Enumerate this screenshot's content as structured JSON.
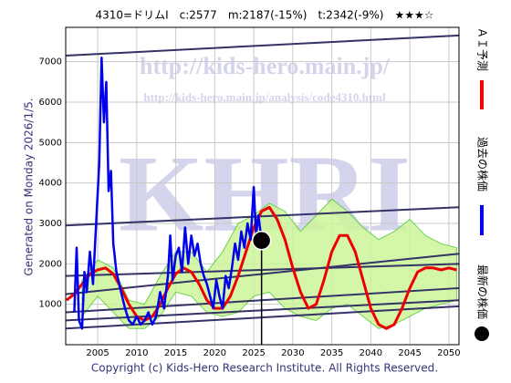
{
  "chart_data": {
    "type": "line",
    "title": "4310=ドリムI　c:2577　m:2187(-15%)　t:2342(-9%)　★★★☆",
    "side_note": "Generated on Monday 2026/1/5.",
    "copyright": "Copyright (c) Kids-Hero Research Institute. All Rights Reserved.",
    "watermarks": [
      "http://kids-hero.main.jp/",
      "http://kids-hero.main.jp/analysis/code4310.html",
      "KHRI"
    ],
    "xlim": [
      2000.9,
      2051.3
    ],
    "ylim": [
      0,
      7850
    ],
    "xticks": [
      2005,
      2010,
      2015,
      2020,
      2025,
      2030,
      2035,
      2040,
      2045,
      2050
    ],
    "yticks": [
      1000,
      2000,
      3000,
      4000,
      5000,
      6000,
      7000
    ],
    "grid": true,
    "bands": [
      {
        "color": "#55cc33",
        "fill": "#ccf59a",
        "x": [
          2003,
          2005,
          2007,
          2009,
          2011,
          2013,
          2015,
          2017,
          2019,
          2021,
          2023,
          2025,
          2027,
          2029,
          2031,
          2033,
          2035,
          2037,
          2039,
          2041,
          2043,
          2045,
          2047,
          2049,
          2051
        ],
        "upper": [
          1600,
          2100,
          1900,
          1100,
          1000,
          1700,
          2300,
          2300,
          1800,
          2300,
          3000,
          3200,
          3500,
          3300,
          2800,
          3200,
          3600,
          3300,
          2900,
          2600,
          2800,
          3100,
          2700,
          2500,
          2400
        ],
        "lower": [
          700,
          1200,
          800,
          400,
          400,
          700,
          1300,
          1200,
          800,
          700,
          800,
          1200,
          1300,
          900,
          700,
          600,
          900,
          1000,
          700,
          400,
          500,
          700,
          900,
          1000,
          1100
        ]
      }
    ],
    "series": [
      {
        "color": "#333366",
        "x": [
          2000.9,
          2051.3
        ],
        "values": [
          7150,
          7650
        ]
      },
      {
        "color": "#333366",
        "x": [
          2000.9,
          2051.3
        ],
        "values": [
          2950,
          3400
        ]
      },
      {
        "color": "#333366",
        "x": [
          2000.9,
          2051.3
        ],
        "values": [
          1250,
          2250
        ]
      },
      {
        "color": "#333366",
        "x": [
          2000.9,
          2051.3
        ],
        "values": [
          1700,
          2000
        ]
      },
      {
        "color": "#333366",
        "x": [
          2000.9,
          2051.3
        ],
        "values": [
          800,
          1400
        ]
      },
      {
        "color": "#333366",
        "x": [
          2000.9,
          2051.3
        ],
        "values": [
          600,
          1100
        ]
      },
      {
        "color": "#333366",
        "x": [
          2000.9,
          2051.3
        ],
        "values": [
          400,
          950
        ]
      },
      {
        "name": "ＡＩ予測",
        "color": "#ee0000",
        "width": 3,
        "x": [
          2001,
          2002,
          2003,
          2004,
          2005,
          2006,
          2007,
          2008,
          2009,
          2010,
          2011,
          2012,
          2013,
          2014,
          2015,
          2016,
          2017,
          2018,
          2019,
          2020,
          2021,
          2022,
          2023,
          2024,
          2025,
          2026,
          2027,
          2028,
          2029,
          2030,
          2031,
          2032,
          2033,
          2034,
          2035,
          2036,
          2037,
          2038,
          2039,
          2040,
          2041,
          2042,
          2043,
          2044,
          2045,
          2046,
          2047,
          2048,
          2049,
          2050,
          2051
        ],
        "values": [
          1100,
          1250,
          1500,
          1750,
          1850,
          1900,
          1750,
          1400,
          1000,
          700,
          600,
          700,
          1000,
          1400,
          1750,
          1900,
          1800,
          1500,
          1100,
          900,
          900,
          1200,
          1700,
          2300,
          2900,
          3300,
          3400,
          3100,
          2600,
          1900,
          1300,
          900,
          1000,
          1600,
          2300,
          2700,
          2700,
          2300,
          1600,
          900,
          500,
          400,
          500,
          900,
          1400,
          1800,
          1900,
          1900,
          1850,
          1900,
          1850
        ]
      },
      {
        "name": "過去の株価",
        "color": "#0000ee",
        "width": 2.5,
        "x": [
          2002.0,
          2002.3,
          2002.6,
          2003.0,
          2003.3,
          2003.6,
          2004.0,
          2004.4,
          2004.8,
          2005.2,
          2005.5,
          2005.8,
          2006.1,
          2006.4,
          2006.7,
          2007.0,
          2007.4,
          2008.0,
          2008.5,
          2009.0,
          2009.5,
          2010.0,
          2010.5,
          2011.0,
          2011.5,
          2012.0,
          2012.5,
          2013.0,
          2013.5,
          2014.0,
          2014.3,
          2014.6,
          2015.0,
          2015.4,
          2015.8,
          2016.2,
          2016.6,
          2017.0,
          2017.4,
          2017.8,
          2018.2,
          2018.6,
          2019.0,
          2019.4,
          2019.8,
          2020.2,
          2020.6,
          2021.0,
          2021.4,
          2021.8,
          2022.2,
          2022.6,
          2023.0,
          2023.4,
          2023.8,
          2024.2,
          2024.6,
          2025.0,
          2025.3,
          2025.6,
          2026.0
        ],
        "values": [
          800,
          2400,
          600,
          400,
          1800,
          1300,
          2300,
          1500,
          3000,
          4500,
          7100,
          5500,
          6500,
          3800,
          4300,
          2500,
          1800,
          1300,
          900,
          600,
          500,
          700,
          500,
          600,
          800,
          500,
          700,
          1300,
          900,
          1700,
          2700,
          1600,
          2200,
          2400,
          1800,
          2900,
          2000,
          2700,
          2200,
          2500,
          2000,
          1700,
          1500,
          1200,
          900,
          1600,
          1200,
          900,
          1700,
          1400,
          1900,
          2500,
          2100,
          2800,
          2400,
          3000,
          2600,
          3900,
          2700,
          3200,
          2577
        ]
      }
    ],
    "latest": {
      "name": "最新の株価",
      "color": "#000000",
      "x": 2026.0,
      "value": 2577
    }
  }
}
